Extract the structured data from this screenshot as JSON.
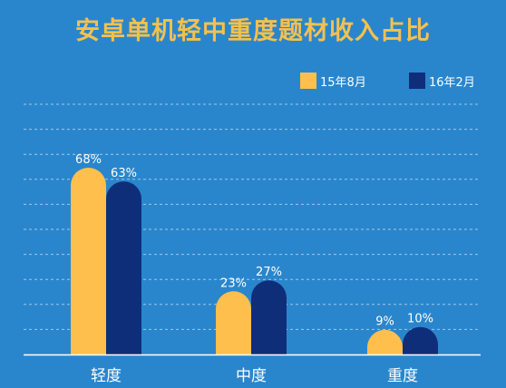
{
  "chart_data": {
    "type": "bar",
    "title": "安卓单机轻中重度题材收入占比",
    "categories": [
      "轻度",
      "中度",
      "重度"
    ],
    "series": [
      {
        "name": "15年8月",
        "values": [
          68,
          23,
          9
        ],
        "labels": [
          "68%",
          "23%",
          "9%"
        ],
        "color": "#ffbf4d"
      },
      {
        "name": "16年2月",
        "values": [
          63,
          27,
          10
        ],
        "labels": [
          "63%",
          "27%",
          "10%"
        ],
        "color": "#0f2e7a"
      }
    ],
    "ylim": [
      0,
      80
    ],
    "grid": true,
    "legend": "top-right"
  }
}
